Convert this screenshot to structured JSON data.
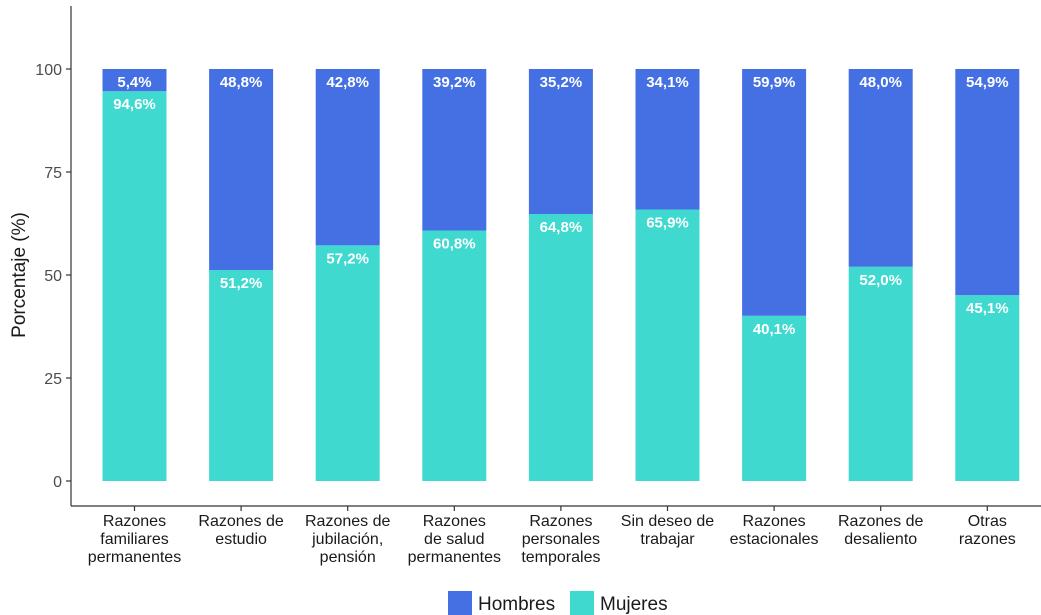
{
  "chart_data": {
    "type": "bar",
    "stacked": true,
    "orientation": "vertical",
    "title": "",
    "xlabel": "",
    "ylabel": "Porcentaje (%)",
    "ylim": [
      0,
      110
    ],
    "yticks": [
      0,
      25,
      50,
      75,
      100
    ],
    "grid": false,
    "legend_position": "bottom",
    "categories": [
      [
        "Razones",
        "familiares",
        "permanentes"
      ],
      [
        "Razones de",
        "estudio"
      ],
      [
        "Razones de",
        "jubilación,",
        "pensión"
      ],
      [
        "Razones",
        "de salud",
        "permanentes"
      ],
      [
        "Razones",
        "personales",
        "temporales"
      ],
      [
        "Sin deseo de",
        "trabajar"
      ],
      [
        "Razones",
        "estacionales"
      ],
      [
        "Razones de",
        "desaliento"
      ],
      [
        "Otras",
        "razones"
      ]
    ],
    "series": [
      {
        "name": "Mujeres",
        "color": "#40d9d0",
        "values": [
          94.6,
          51.2,
          57.2,
          60.8,
          64.8,
          65.9,
          40.1,
          52.0,
          45.1
        ],
        "labels": [
          "94,6%",
          "51,2%",
          "57,2%",
          "60,8%",
          "64,8%",
          "65,9%",
          "40,1%",
          "52,0%",
          "45,1%"
        ]
      },
      {
        "name": "Hombres",
        "color": "#4470e3",
        "values": [
          5.4,
          48.8,
          42.8,
          39.2,
          35.2,
          34.1,
          59.9,
          48.0,
          54.9
        ],
        "labels": [
          "5,4%",
          "48,8%",
          "42,8%",
          "39,2%",
          "35,2%",
          "34,1%",
          "59,9%",
          "48,0%",
          "54,9%"
        ]
      }
    ],
    "legend": [
      "Hombres",
      "Mujeres"
    ]
  }
}
